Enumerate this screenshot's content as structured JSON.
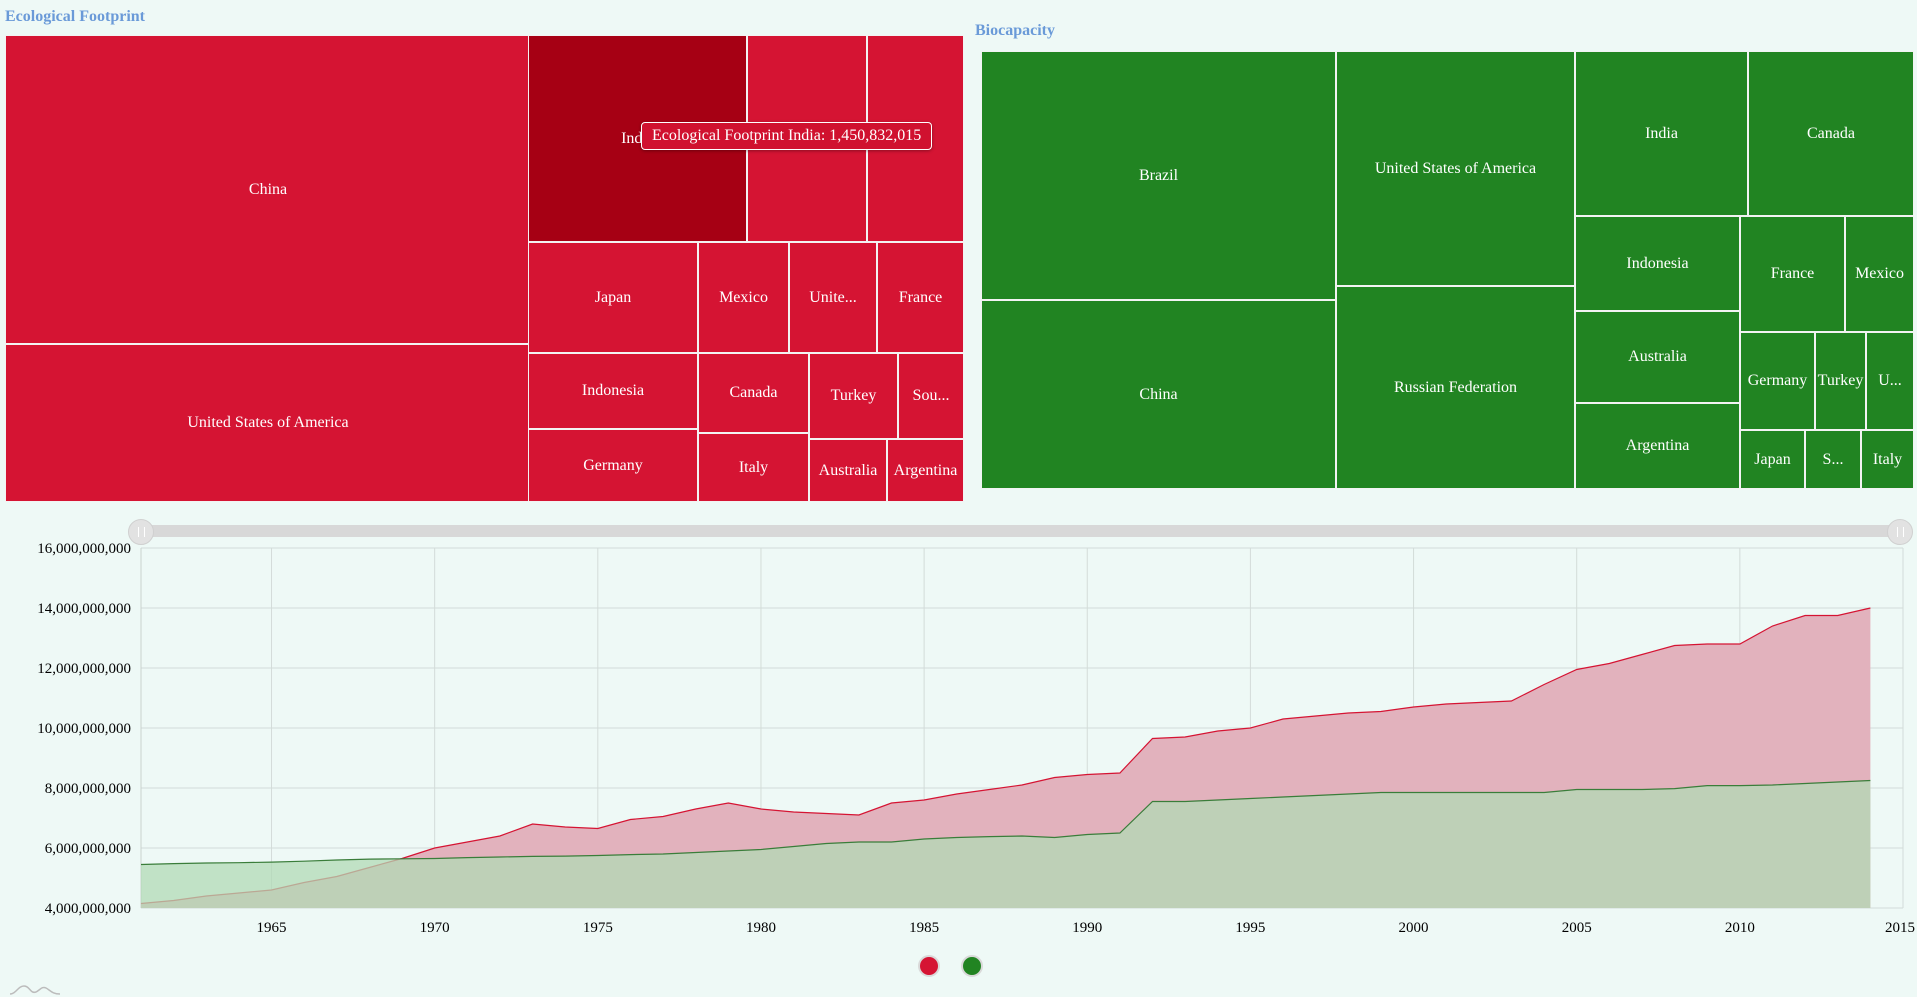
{
  "ecological_footprint": {
    "title": "Ecological Footprint",
    "color": "#d51433",
    "highlight_color": "#a60014",
    "cells": [
      {
        "label": "China"
      },
      {
        "label": "United States of America"
      },
      {
        "label": "India"
      },
      {
        "label": ""
      },
      {
        "label": ""
      },
      {
        "label": "Japan"
      },
      {
        "label": "Mexico"
      },
      {
        "label": "Unite..."
      },
      {
        "label": "France"
      },
      {
        "label": "Indonesia"
      },
      {
        "label": "Canada"
      },
      {
        "label": "Turkey"
      },
      {
        "label": "Sou..."
      },
      {
        "label": "Germany"
      },
      {
        "label": "Italy"
      },
      {
        "label": "Australia"
      },
      {
        "label": "Argentina"
      }
    ],
    "tooltip": "Ecological Footprint India: 1,450,832,015"
  },
  "biocapacity": {
    "title": "Biocapacity",
    "color": "#218422",
    "cells": [
      {
        "label": "Brazil"
      },
      {
        "label": "China"
      },
      {
        "label": "United States of America"
      },
      {
        "label": "Russian Federation"
      },
      {
        "label": "India"
      },
      {
        "label": "Canada"
      },
      {
        "label": "Indonesia"
      },
      {
        "label": "France"
      },
      {
        "label": "Mexico"
      },
      {
        "label": "Australia"
      },
      {
        "label": "Germany"
      },
      {
        "label": "Turkey"
      },
      {
        "label": "U..."
      },
      {
        "label": "Argentina"
      },
      {
        "label": "Japan"
      },
      {
        "label": "S..."
      },
      {
        "label": "Italy"
      }
    ]
  },
  "chart_data": {
    "type": "area",
    "ylim": [
      4000000000,
      16000000000
    ],
    "xlim": [
      1961,
      2015
    ],
    "yticks": [
      4000000000,
      6000000000,
      8000000000,
      10000000000,
      12000000000,
      14000000000,
      16000000000
    ],
    "ytick_labels": [
      "4,000,000,000",
      "6,000,000,000",
      "8,000,000,000",
      "10,000,000,000",
      "12,000,000,000",
      "14,000,000,000",
      "16,000,000,000"
    ],
    "xticks": [
      1965,
      1970,
      1975,
      1980,
      1985,
      1990,
      1995,
      2000,
      2005,
      2010,
      2015
    ],
    "xtick_labels": [
      "1965",
      "1970",
      "1975",
      "1980",
      "1985",
      "1990",
      "1995",
      "2000",
      "2005",
      "2010",
      "2015"
    ],
    "grid": true,
    "legend": "bottom-center",
    "x": [
      1961,
      1962,
      1963,
      1964,
      1965,
      1966,
      1967,
      1968,
      1969,
      1970,
      1971,
      1972,
      1973,
      1974,
      1975,
      1976,
      1977,
      1978,
      1979,
      1980,
      1981,
      1982,
      1983,
      1984,
      1985,
      1986,
      1987,
      1988,
      1989,
      1990,
      1991,
      1992,
      1993,
      1994,
      1995,
      1996,
      1997,
      1998,
      1999,
      2000,
      2001,
      2002,
      2003,
      2004,
      2005,
      2006,
      2007,
      2008,
      2009,
      2010,
      2011,
      2012,
      2013,
      2014
    ],
    "series": [
      {
        "color": "#d51433",
        "fill": "#e2b2bd",
        "values": [
          4150000000,
          4250000000,
          4400000000,
          4500000000,
          4600000000,
          4850000000,
          5050000000,
          5350000000,
          5650000000,
          6000000000,
          6200000000,
          6400000000,
          6800000000,
          6700000000,
          6650000000,
          6950000000,
          7050000000,
          7300000000,
          7500000000,
          7300000000,
          7200000000,
          7150000000,
          7100000000,
          7500000000,
          7600000000,
          7800000000,
          7950000000,
          8100000000,
          8350000000,
          8450000000,
          8500000000,
          9650000000,
          9700000000,
          9900000000,
          10000000000,
          10300000000,
          10400000000,
          10500000000,
          10550000000,
          10700000000,
          10800000000,
          10850000000,
          10900000000,
          11450000000,
          11950000000,
          12150000000,
          12450000000,
          12750000000,
          12800000000,
          12800000000,
          13400000000,
          13750000000,
          13750000000,
          14000000000
        ]
      },
      {
        "color": "#3a7d3a",
        "fill": "#b2d9b5",
        "values": [
          5450000000,
          5480000000,
          5500000000,
          5510000000,
          5530000000,
          5560000000,
          5600000000,
          5630000000,
          5640000000,
          5650000000,
          5680000000,
          5700000000,
          5720000000,
          5730000000,
          5750000000,
          5780000000,
          5800000000,
          5850000000,
          5900000000,
          5950000000,
          6050000000,
          6150000000,
          6200000000,
          6200000000,
          6300000000,
          6350000000,
          6380000000,
          6400000000,
          6350000000,
          6450000000,
          6500000000,
          7550000000,
          7550000000,
          7600000000,
          7650000000,
          7700000000,
          7750000000,
          7800000000,
          7850000000,
          7850000000,
          7850000000,
          7850000000,
          7850000000,
          7850000000,
          7950000000,
          7950000000,
          7950000000,
          7980000000,
          8080000000,
          8080000000,
          8100000000,
          8150000000,
          8200000000,
          8250000000
        ]
      }
    ]
  }
}
